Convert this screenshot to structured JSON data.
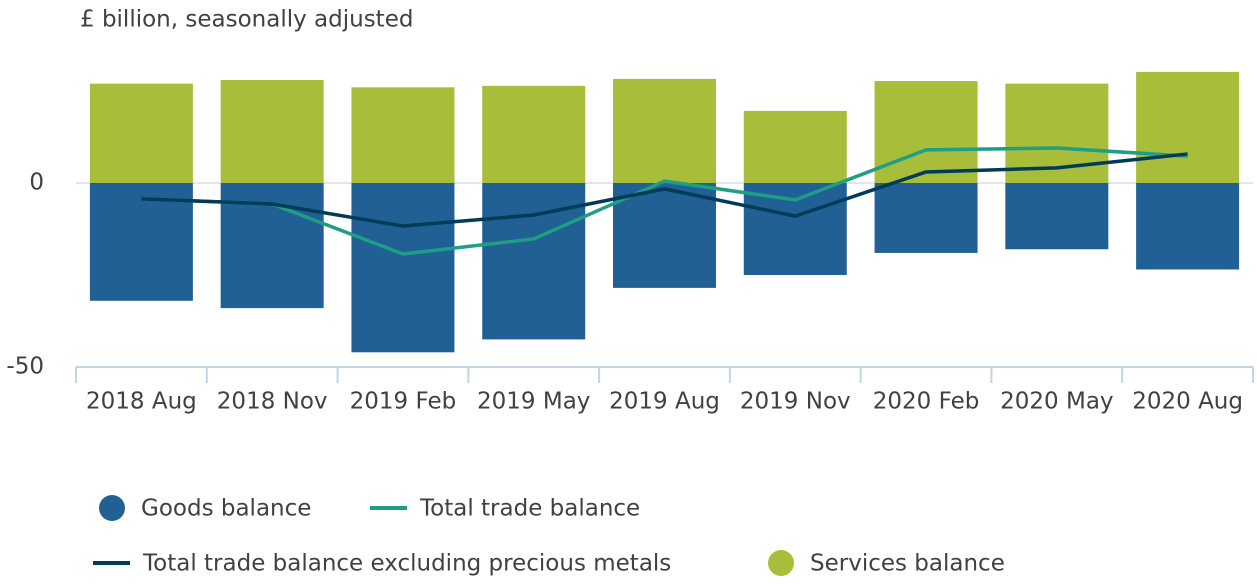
{
  "chart_data": {
    "type": "bar",
    "stacked": true,
    "subtitle": "£ billion, seasonally adjusted",
    "categories": [
      "2018 Aug",
      "2018 Nov",
      "2019 Feb",
      "2019 May",
      "2019 Aug",
      "2019 Nov",
      "2020 Feb",
      "2020 May",
      "2020 Aug"
    ],
    "series": [
      {
        "name": "Goods balance",
        "type": "bar",
        "color": "#206095",
        "values": [
          -32,
          -34,
          -46,
          -42.5,
          -28.5,
          -25,
          -19,
          -18,
          -23.5
        ]
      },
      {
        "name": "Total trade balance",
        "type": "line",
        "color": "#1f9e84",
        "values": [
          -4.3,
          -5.7,
          -19.3,
          -15.2,
          0.5,
          -4.6,
          9,
          9.5,
          7.3
        ]
      },
      {
        "name": "Total trade balance excluding precious metals",
        "type": "line",
        "color": "#003c57",
        "values": [
          -4.3,
          -5.7,
          -11.7,
          -8.7,
          -1.6,
          -9,
          3,
          4.1,
          7.9
        ]
      },
      {
        "name": "Services balance",
        "type": "bar",
        "color": "#a8bd3a",
        "values": [
          27,
          28,
          26,
          26.4,
          28.3,
          19.6,
          27.7,
          27,
          30.2
        ]
      }
    ],
    "ylim": [
      -50,
      32
    ],
    "yticks": [
      -50,
      0
    ],
    "grid": true,
    "legend": "bottom"
  }
}
